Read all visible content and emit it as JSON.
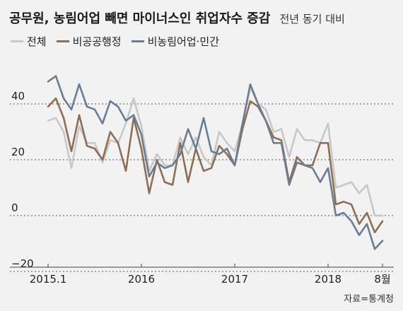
{
  "header": {
    "title": "공무원, 농림어업 빼면 마이너스인 취업자수 증감",
    "subtitle": "전년 동기 대비"
  },
  "source": "자료=통계청",
  "colors": {
    "total": "#c8c8c8",
    "non_public": "#8c6f55",
    "non_farm_private": "#6a7d93",
    "grid": "#555555"
  },
  "chart_data": {
    "type": "line",
    "title": "공무원, 농림어업 빼면 마이너스인 취업자수 증감",
    "subtitle": "전년 동기 대비",
    "xlabel": "",
    "ylabel": "",
    "ylim": [
      -20,
      55
    ],
    "y_ticks": [
      40,
      20,
      0,
      -20
    ],
    "y_tick_labels": [
      "40",
      "20",
      "0",
      "−20"
    ],
    "x_tick_labels": [
      "2015.1",
      "2016",
      "2017",
      "2018",
      "8월"
    ],
    "x_tick_months": [
      "2015-01",
      "2016-01",
      "2017-01",
      "2018-01",
      "2018-08"
    ],
    "x": [
      "2015-01",
      "2015-02",
      "2015-03",
      "2015-04",
      "2015-05",
      "2015-06",
      "2015-07",
      "2015-08",
      "2015-09",
      "2015-10",
      "2015-11",
      "2015-12",
      "2016-01",
      "2016-02",
      "2016-03",
      "2016-04",
      "2016-05",
      "2016-06",
      "2016-07",
      "2016-08",
      "2016-09",
      "2016-10",
      "2016-11",
      "2016-12",
      "2017-01",
      "2017-02",
      "2017-03",
      "2017-04",
      "2017-05",
      "2017-06",
      "2017-07",
      "2017-08",
      "2017-09",
      "2017-10",
      "2017-11",
      "2017-12",
      "2018-01",
      "2018-02",
      "2018-03",
      "2018-04",
      "2018-05",
      "2018-06",
      "2018-07",
      "2018-08"
    ],
    "grid": true,
    "legend_position": "top-left",
    "series": [
      {
        "name": "전체",
        "color_key": "total",
        "values": [
          34,
          35,
          30,
          17,
          32,
          26,
          26,
          19,
          27,
          26,
          33,
          42,
          32,
          16,
          22,
          18,
          18,
          28,
          22,
          28,
          21,
          18,
          30,
          26,
          23,
          33,
          46,
          40,
          38,
          30,
          31,
          21,
          31,
          27,
          27,
          26,
          33,
          10,
          11,
          12,
          8,
          11,
          0,
          0
        ]
      },
      {
        "name": "비공공행정",
        "color_key": "non_public",
        "values": [
          39,
          42,
          35,
          23,
          36,
          25,
          24,
          20,
          30,
          26,
          16,
          35,
          24,
          8,
          20,
          12,
          11,
          26,
          12,
          24,
          16,
          17,
          25,
          22,
          18,
          31,
          41,
          39,
          34,
          28,
          27,
          12,
          21,
          18,
          18,
          26,
          26,
          4,
          5,
          4,
          -3,
          1,
          -6,
          -2
        ]
      },
      {
        "name": "비농림어업·민간",
        "color_key": "non_farm_private",
        "values": [
          48,
          50,
          42,
          38,
          47,
          39,
          38,
          33,
          41,
          39,
          34,
          36,
          29,
          14,
          19,
          17,
          18,
          22,
          31,
          24,
          35,
          23,
          22,
          24,
          18,
          33,
          47,
          40,
          34,
          26,
          26,
          11,
          19,
          18,
          17,
          12,
          17,
          0,
          1,
          -2,
          -7,
          -3,
          -12,
          -9
        ]
      }
    ]
  }
}
